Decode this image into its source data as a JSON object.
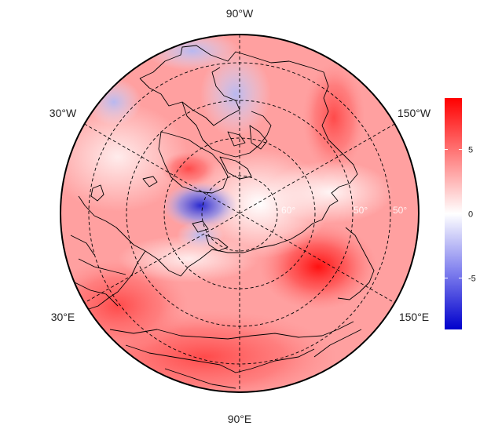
{
  "map": {
    "projection": "north-polar-stereographic",
    "longitude_labels": [
      {
        "name": "lon-label-90w",
        "text": "90°W"
      },
      {
        "name": "lon-label-30w",
        "text": "30°W"
      },
      {
        "name": "lon-label-150w",
        "text": "150°W"
      },
      {
        "name": "lon-label-30e",
        "text": "30°E"
      },
      {
        "name": "lon-label-150e",
        "text": "150°E"
      },
      {
        "name": "lon-label-90e",
        "text": "90°E"
      }
    ],
    "latitude_labels": [
      "60°",
      "50°",
      "50°"
    ],
    "colorbar": {
      "min": -9,
      "max": 9,
      "ticks": [
        -5,
        0,
        5
      ],
      "tick_labels": [
        "-5",
        "0",
        "5"
      ],
      "colors": {
        "low": "#0000cc",
        "mid": "#ffffff",
        "high": "#ff0000"
      }
    },
    "colors": {
      "coastline": "#000000",
      "graticule": "#000000",
      "background": "#ffffff"
    }
  }
}
